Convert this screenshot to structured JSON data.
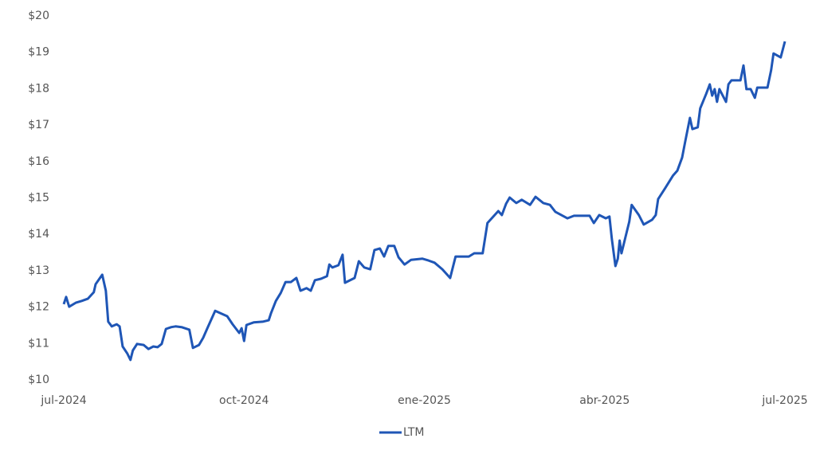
{
  "chart_data": {
    "type": "line",
    "x": [
      0,
      0.04,
      0.09,
      0.2,
      0.3,
      0.4,
      0.5,
      0.53,
      0.64,
      0.7,
      0.74,
      0.8,
      0.88,
      0.93,
      0.98,
      1.06,
      1.11,
      1.15,
      1.22,
      1.33,
      1.41,
      1.49,
      1.56,
      1.63,
      1.7,
      1.79,
      1.86,
      1.96,
      2.09,
      2.15,
      2.25,
      2.32,
      2.39,
      2.52,
      2.72,
      2.81,
      2.92,
      2.96,
      3.0,
      3.04,
      3.16,
      3.31,
      3.41,
      3.45,
      3.53,
      3.61,
      3.69,
      3.78,
      3.87,
      3.94,
      4.04,
      4.11,
      4.18,
      4.28,
      4.38,
      4.42,
      4.47,
      4.57,
      4.64,
      4.68,
      4.84,
      4.91,
      5.0,
      5.1,
      5.17,
      5.26,
      5.33,
      5.4,
      5.5,
      5.57,
      5.67,
      5.78,
      5.97,
      6.07,
      6.17,
      6.3,
      6.43,
      6.52,
      6.74,
      6.83,
      6.97,
      7.05,
      7.23,
      7.29,
      7.36,
      7.42,
      7.53,
      7.62,
      7.76,
      7.85,
      7.98,
      8.09,
      8.18,
      8.38,
      8.49,
      8.75,
      8.82,
      8.91,
      9.02,
      9.08,
      9.12,
      9.18,
      9.22,
      9.25,
      9.28,
      9.41,
      9.45,
      9.57,
      9.65,
      9.79,
      9.85,
      9.89,
      10.0,
      10.14,
      10.21,
      10.29,
      10.34,
      10.42,
      10.46,
      10.55,
      10.59,
      10.69,
      10.75,
      10.79,
      10.83,
      10.87,
      10.91,
      11.02,
      11.06,
      11.11,
      11.26,
      11.31,
      11.36,
      11.43,
      11.5,
      11.54,
      11.71,
      11.77,
      11.81,
      11.93,
      12.0
    ],
    "series": [
      {
        "name": "LTM",
        "color": "#1f56b6",
        "values": [
          12.08,
          12.28,
          12.01,
          12.12,
          12.17,
          12.23,
          12.41,
          12.63,
          12.89,
          12.45,
          11.6,
          11.47,
          11.53,
          11.47,
          10.92,
          10.72,
          10.55,
          10.81,
          10.99,
          10.96,
          10.85,
          10.92,
          10.9,
          10.99,
          11.4,
          11.45,
          11.47,
          11.45,
          11.38,
          10.88,
          10.96,
          11.16,
          11.42,
          11.9,
          11.75,
          11.53,
          11.29,
          11.42,
          11.07,
          11.51,
          11.58,
          11.6,
          11.64,
          11.84,
          12.17,
          12.39,
          12.69,
          12.69,
          12.8,
          12.45,
          12.52,
          12.45,
          12.74,
          12.78,
          12.85,
          13.17,
          13.09,
          13.15,
          13.44,
          12.67,
          12.8,
          13.26,
          13.09,
          13.04,
          13.57,
          13.61,
          13.39,
          13.68,
          13.68,
          13.37,
          13.17,
          13.3,
          13.33,
          13.28,
          13.22,
          13.04,
          12.8,
          13.39,
          13.39,
          13.48,
          13.48,
          14.31,
          14.64,
          14.53,
          14.84,
          15.01,
          14.86,
          14.95,
          14.81,
          15.03,
          14.86,
          14.81,
          14.62,
          14.44,
          14.51,
          14.51,
          14.31,
          14.53,
          14.44,
          14.49,
          13.87,
          13.13,
          13.33,
          13.83,
          13.48,
          14.35,
          14.81,
          14.53,
          14.27,
          14.4,
          14.53,
          14.97,
          15.25,
          15.62,
          15.75,
          16.11,
          16.54,
          17.2,
          16.89,
          16.94,
          17.46,
          17.86,
          18.12,
          17.81,
          17.99,
          17.64,
          17.99,
          17.64,
          18.12,
          18.23,
          18.23,
          18.64,
          17.99,
          17.99,
          17.75,
          18.03,
          18.03,
          18.51,
          18.97,
          18.86,
          19.3
        ]
      }
    ],
    "xlim": [
      0,
      12
    ],
    "xticks": [
      {
        "value": 0,
        "label": "jul-2024"
      },
      {
        "value": 3,
        "label": "oct-2024"
      },
      {
        "value": 6,
        "label": "ene-2025"
      },
      {
        "value": 9,
        "label": "abr-2025"
      },
      {
        "value": 12,
        "label": "jul-2025"
      }
    ],
    "ylim": [
      10,
      20
    ],
    "yticks": [
      {
        "value": 10,
        "label": "$10"
      },
      {
        "value": 11,
        "label": "$11"
      },
      {
        "value": 12,
        "label": "$12"
      },
      {
        "value": 13,
        "label": "$13"
      },
      {
        "value": 14,
        "label": "$14"
      },
      {
        "value": 15,
        "label": "$15"
      },
      {
        "value": 16,
        "label": "$16"
      },
      {
        "value": 17,
        "label": "$17"
      },
      {
        "value": 18,
        "label": "$18"
      },
      {
        "value": 19,
        "label": "$19"
      },
      {
        "value": 20,
        "label": "$20"
      }
    ],
    "grid": false,
    "legend": "bottom"
  }
}
